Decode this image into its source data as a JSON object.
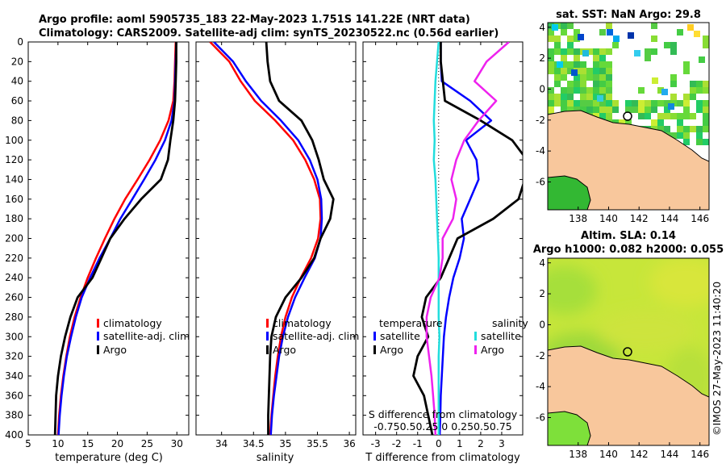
{
  "titles": {
    "line1": "Argo profile: aoml 5905735_183 22-May-2023 1.751S 141.22E (NRT data)",
    "line2": "Climatology: CARS2009. Satellite-adj clim: synTS_20230522.nc (0.56d earlier)",
    "sst_map": "sat. SST: NaN Argo: 29.8",
    "sla_map_1": "Altim. SLA: 0.14",
    "sla_map_2": "Argo h1000: 0.082 h2000: 0.055",
    "watermark": "©IMOS 27-May-2023 11:40:20"
  },
  "colors": {
    "climatology": "#ff0000",
    "satellite": "#0000ff",
    "argo": "#000000",
    "salinity_satellite": "#22dddd",
    "salinity_argo": "#ee22ee",
    "land": "#f8c79c"
  },
  "depth_axis": {
    "ticks": [
      "0",
      "20",
      "40",
      "60",
      "80",
      "100",
      "120",
      "140",
      "160",
      "180",
      "200",
      "220",
      "240",
      "260",
      "280",
      "300",
      "320",
      "340",
      "360",
      "380",
      "400"
    ],
    "range": [
      0,
      400
    ]
  },
  "chart_data": [
    {
      "type": "line",
      "name": "temperature",
      "xlabel": "temperature (deg C)",
      "xlim": [
        5,
        32
      ],
      "xticks": [
        "5",
        "10",
        "15",
        "20",
        "25",
        "30"
      ],
      "y": [
        0,
        20,
        40,
        60,
        80,
        100,
        120,
        140,
        160,
        180,
        200,
        220,
        240,
        260,
        280,
        300,
        320,
        340,
        360,
        380,
        400
      ],
      "series": [
        {
          "name": "climatology",
          "values": [
            29.8,
            29.7,
            29.6,
            29.4,
            28.6,
            27.2,
            25.4,
            23.4,
            21.3,
            19.5,
            17.9,
            16.4,
            15.0,
            13.8,
            12.8,
            12.0,
            11.4,
            10.9,
            10.5,
            10.2,
            10.0
          ]
        },
        {
          "name": "satellite-adj. clim",
          "values": [
            29.9,
            29.8,
            29.7,
            29.6,
            29.1,
            28.0,
            26.4,
            24.5,
            22.5,
            20.5,
            18.8,
            17.0,
            15.4,
            14.0,
            13.0,
            12.2,
            11.5,
            11.0,
            10.6,
            10.3,
            10.1
          ]
        },
        {
          "name": "Argo",
          "values": [
            29.9,
            29.9,
            29.8,
            29.7,
            29.4,
            28.9,
            28.5,
            27.3,
            24.0,
            21.2,
            18.8,
            17.3,
            15.8,
            13.3,
            12.1,
            11.2,
            10.5,
            10.0,
            9.7,
            9.6,
            9.5
          ]
        }
      ],
      "legend": [
        "climatology",
        "satellite-adj. clim",
        "Argo"
      ]
    },
    {
      "type": "line",
      "name": "salinity",
      "xlabel": "salinity",
      "xlim": [
        33.6,
        36.1
      ],
      "xticks": [
        "34",
        "34.5",
        "35",
        "35.5",
        "36"
      ],
      "y": [
        0,
        20,
        40,
        60,
        80,
        100,
        120,
        140,
        160,
        180,
        200,
        220,
        240,
        260,
        280,
        300,
        320,
        340,
        360,
        380,
        400
      ],
      "series": [
        {
          "name": "climatology",
          "values": [
            33.82,
            34.12,
            34.3,
            34.52,
            34.84,
            35.12,
            35.31,
            35.45,
            35.54,
            35.55,
            35.51,
            35.4,
            35.24,
            35.1,
            35.0,
            34.93,
            34.88,
            34.84,
            34.81,
            34.78,
            34.76
          ]
        },
        {
          "name": "satellite-adj. clim",
          "values": [
            33.88,
            34.18,
            34.38,
            34.62,
            34.93,
            35.2,
            35.38,
            35.5,
            35.56,
            35.57,
            35.55,
            35.46,
            35.3,
            35.15,
            35.04,
            34.96,
            34.9,
            34.86,
            34.82,
            34.79,
            34.77
          ]
        },
        {
          "name": "Argo",
          "values": [
            34.7,
            34.72,
            34.76,
            34.9,
            35.25,
            35.42,
            35.52,
            35.6,
            35.75,
            35.7,
            35.55,
            35.45,
            35.25,
            35.0,
            34.85,
            34.78,
            34.76,
            34.75,
            34.74,
            34.73,
            34.73
          ]
        }
      ],
      "legend": [
        "climatology",
        "satellite-adj. clim",
        "Argo"
      ]
    },
    {
      "type": "line",
      "name": "difference from climatology",
      "xlabel": "T difference from climatology",
      "xlim": [
        -3.6,
        4.0
      ],
      "xticks": [
        "-3",
        "-2",
        "-1",
        "0",
        "1",
        "2",
        "3"
      ],
      "s_axis_label": "S difference from climatology",
      "s_axis_ticks": "-0.750.50.25 0 0.250.50.75",
      "y": [
        0,
        20,
        40,
        60,
        80,
        100,
        120,
        140,
        160,
        180,
        200,
        220,
        240,
        260,
        280,
        300,
        320,
        340,
        360,
        380,
        400
      ],
      "series": [
        {
          "name": "temperature satellite",
          "values": [
            0.1,
            0.1,
            0.15,
            1.5,
            2.5,
            1.3,
            1.8,
            1.9,
            1.5,
            1.1,
            1.2,
            1.0,
            0.7,
            0.5,
            0.35,
            0.25,
            0.2,
            0.15,
            0.1,
            0.08,
            0.05
          ]
        },
        {
          "name": "temperature Argo",
          "values": [
            0.1,
            0.1,
            0.2,
            0.3,
            2.0,
            3.5,
            4.2,
            4.1,
            3.8,
            2.6,
            0.9,
            0.5,
            0.1,
            -0.6,
            -0.8,
            -0.5,
            -1.0,
            -1.2,
            -0.7,
            -0.5,
            -0.3
          ]
        },
        {
          "name": "salinity satellite",
          "values": [
            0.0,
            -0.02,
            -0.04,
            -0.05,
            -0.06,
            -0.05,
            -0.06,
            -0.04,
            -0.03,
            -0.02,
            -0.01,
            0.0,
            0.0,
            0.0,
            0.0,
            0.01,
            0.0,
            0.0,
            0.0,
            0.0,
            0.0
          ]
        },
        {
          "name": "salinity Argo",
          "values": [
            0.88,
            0.6,
            0.45,
            0.72,
            0.5,
            0.32,
            0.22,
            0.16,
            0.22,
            0.18,
            0.05,
            0.05,
            0.01,
            -0.1,
            -0.15,
            -0.15,
            -0.12,
            -0.09,
            -0.07,
            -0.05,
            -0.04
          ]
        }
      ],
      "legend_titles": [
        "temperature",
        "salinity"
      ],
      "legend": [
        "satellite",
        "Argo",
        "satellite",
        "Argo"
      ]
    }
  ],
  "maps": {
    "lon_ticks": [
      "138",
      "140",
      "142",
      "144",
      "146"
    ],
    "lat_ticks": [
      "4",
      "2",
      "0",
      "-2",
      "-4",
      "-6"
    ]
  }
}
